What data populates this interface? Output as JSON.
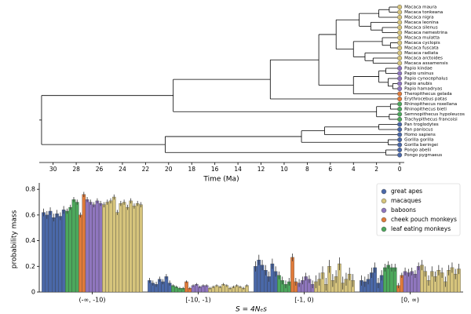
{
  "tree": {
    "xlabel": "Time (Ma)",
    "xlim": [
      31.2,
      -0.4
    ],
    "xticks": [
      30,
      28,
      26,
      24,
      22,
      20,
      18,
      16,
      14,
      12,
      10,
      8,
      6,
      4,
      2,
      0
    ],
    "root": {
      "age": 31,
      "children": [
        {
          "age": 19.6,
          "children": [
            {
              "age": 11.2,
              "children": [
                {
                  "age": 7,
                  "children": [
                    {
                      "age": 5.5,
                      "children": [
                        {
                          "age": 3.5,
                          "children": [
                            {
                              "age": 1.8,
                              "children": [
                                {
                                  "age": 0.9,
                                  "children": [
                                    {
                                      "name": "Macaca maura",
                                      "color": "#d6c47c"
                                    },
                                    {
                                      "name": "Macaca tonkeana",
                                      "color": "#d6c47c"
                                    }
                                  ]
                                },
                                {
                                  "name": "Macaca nigra",
                                  "color": "#d6c47c"
                                }
                              ]
                            },
                            {
                              "age": 2.5,
                              "children": [
                                {
                                  "name": "Macaca leonina",
                                  "color": "#d6c47c"
                                },
                                {
                                  "age": 1.5,
                                  "children": [
                                    {
                                      "name": "Macaca silenus",
                                      "color": "#d6c47c"
                                    },
                                    {
                                      "name": "Macaca nemestrina",
                                      "color": "#d6c47c"
                                    }
                                  ]
                                }
                              ]
                            }
                          ]
                        },
                        {
                          "age": 4.0,
                          "children": [
                            {
                              "age": 1.5,
                              "children": [
                                {
                                  "name": "Macaca mulatta",
                                  "color": "#d6c47c"
                                },
                                {
                                  "age": 0.8,
                                  "children": [
                                    {
                                      "name": "Macaca cyclopis",
                                      "color": "#d6c47c"
                                    },
                                    {
                                      "name": "Macaca fuscata",
                                      "color": "#d6c47c"
                                    }
                                  ]
                                }
                              ]
                            },
                            {
                              "age": 3.0,
                              "children": [
                                {
                                  "name": "Macaca radiata",
                                  "color": "#d6c47c"
                                },
                                {
                                  "age": 2.3,
                                  "children": [
                                    {
                                      "name": "Macaca arctoides",
                                      "color": "#d6c47c"
                                    },
                                    {
                                      "name": "Macaca assamensis",
                                      "color": "#d6c47c"
                                    }
                                  ]
                                }
                              ]
                            }
                          ]
                        }
                      ]
                    },
                    {
                      "age": 4.0,
                      "children": [
                        {
                          "age": 1.8,
                          "children": [
                            {
                              "age": 1.2,
                              "children": [
                                {
                                  "name": "Papio kindae",
                                  "color": "#8f76be"
                                },
                                {
                                  "name": "Papio ursinus",
                                  "color": "#8f76be"
                                }
                              ]
                            },
                            {
                              "age": 1.0,
                              "children": [
                                {
                                  "name": "Papio cynocephalus",
                                  "color": "#8f76be"
                                },
                                {
                                  "age": 0.6,
                                  "children": [
                                    {
                                      "name": "Papio anubis",
                                      "color": "#8f76be"
                                    },
                                    {
                                      "name": "Papio hamadryas",
                                      "color": "#8f76be"
                                    }
                                  ]
                                }
                              ]
                            }
                          ]
                        },
                        {
                          "name": "Theropithecus gelada",
                          "color": "#e07b3a"
                        }
                      ]
                    }
                  ]
                },
                {
                  "name": "Erythrocebus patas",
                  "color": "#e07b3a"
                }
              ]
            },
            {
              "age": 2.0,
              "children": [
                {
                  "age": 0.8,
                  "children": [
                    {
                      "name": "Rhinopithecus roxellana",
                      "color": "#4ca85c"
                    },
                    {
                      "name": "Rhinopithecus bieti",
                      "color": "#4ca85c"
                    }
                  ]
                },
                {
                  "age": 0.9,
                  "children": [
                    {
                      "name": "Semnopithecus hypoleucos",
                      "color": "#4ca85c"
                    },
                    {
                      "name": "Trachypithecus francoisi",
                      "color": "#4ca85c"
                    }
                  ]
                }
              ]
            }
          ]
        },
        {
          "age": 20.3,
          "children": [
            {
              "age": 8.5,
              "children": [
                {
                  "age": 6.5,
                  "children": [
                    {
                      "age": 1.8,
                      "children": [
                        {
                          "name": "Pan troglodytes",
                          "color": "#4a68a8"
                        },
                        {
                          "name": "Pan paniscus",
                          "color": "#4a68a8"
                        }
                      ]
                    },
                    {
                      "name": "Homo sapiens",
                      "color": "#4a68a8"
                    }
                  ]
                },
                {
                  "age": 1.0,
                  "children": [
                    {
                      "name": "Gorilla gorilla",
                      "color": "#4a68a8"
                    },
                    {
                      "name": "Gorilla beringei",
                      "color": "#4a68a8"
                    }
                  ]
                }
              ]
            },
            {
              "age": 1.2,
              "children": [
                {
                  "name": "Pongo abelii",
                  "color": "#4a68a8"
                },
                {
                  "name": "Pongo pygmaeus",
                  "color": "#4a68a8"
                }
              ]
            }
          ]
        }
      ]
    }
  },
  "chart_data": {
    "type": "bar",
    "ylabel": "probability mass",
    "xlabel": "S = 4Nₑs",
    "categories": [
      "(-∞, -10)",
      "[-10, -1)",
      "[-1, 0)",
      "[0, ∞)"
    ],
    "ylim": [
      0,
      0.85
    ],
    "yticks": [
      0.0,
      0.2,
      0.4,
      0.6,
      0.8
    ],
    "legend": "upper right",
    "series": [
      {
        "name": "great apes",
        "color": "#4a68a8",
        "values": [
          [
            0.62,
            0.6,
            0.63,
            0.58,
            0.61,
            0.59,
            0.64
          ],
          [
            0.09,
            0.07,
            0.06,
            0.1,
            0.08,
            0.12,
            0.07
          ],
          [
            0.2,
            0.25,
            0.21,
            0.17,
            0.12,
            0.22,
            0.16
          ],
          [
            0.09,
            0.08,
            0.1,
            0.15,
            0.19,
            0.07,
            0.13
          ]
        ],
        "errors": [
          0.03,
          0.02,
          0.04,
          0.04
        ]
      },
      {
        "name": "macaques",
        "color": "#d6c47c",
        "values": [
          [
            0.68,
            0.7,
            0.71,
            0.74,
            0.62,
            0.69,
            0.7,
            0.66,
            0.71,
            0.67,
            0.69,
            0.68
          ],
          [
            0.03,
            0.04,
            0.05,
            0.04,
            0.06,
            0.05,
            0.03,
            0.04,
            0.05,
            0.04,
            0.03,
            0.05
          ],
          [
            0.08,
            0.1,
            0.15,
            0.06,
            0.2,
            0.09,
            0.12,
            0.22,
            0.07,
            0.1,
            0.14,
            0.09
          ],
          [
            0.21,
            0.16,
            0.09,
            0.16,
            0.12,
            0.17,
            0.15,
            0.08,
            0.17,
            0.19,
            0.14,
            0.18
          ]
        ],
        "errors": [
          0.02,
          0.01,
          0.05,
          0.04
        ]
      },
      {
        "name": "baboons",
        "color": "#8f76be",
        "values": [
          [
            0.72,
            0.7,
            0.68,
            0.71,
            0.69
          ],
          [
            0.05,
            0.06,
            0.04,
            0.05,
            0.05
          ],
          [
            0.07,
            0.09,
            0.12,
            0.1,
            0.06
          ],
          [
            0.16,
            0.15,
            0.16,
            0.14,
            0.2
          ]
        ],
        "errors": [
          0.02,
          0.01,
          0.03,
          0.03
        ]
      },
      {
        "name": "cheek pouch monkeys",
        "color": "#e07b3a",
        "values": [
          [
            0.6,
            0.76
          ],
          [
            0.08,
            0.03
          ],
          [
            0.27,
            0.08
          ],
          [
            0.05,
            0.13
          ]
        ],
        "errors": [
          0.02,
          0.01,
          0.03,
          0.02
        ]
      },
      {
        "name": "leaf eating monkeys",
        "color": "#4ca85c",
        "values": [
          [
            0.63,
            0.66,
            0.72,
            0.7
          ],
          [
            0.05,
            0.04,
            0.03,
            0.03
          ],
          [
            0.13,
            0.09,
            0.06,
            0.08
          ],
          [
            0.19,
            0.21,
            0.19,
            0.19
          ]
        ],
        "errors": [
          0.02,
          0.01,
          0.03,
          0.03
        ]
      }
    ]
  }
}
